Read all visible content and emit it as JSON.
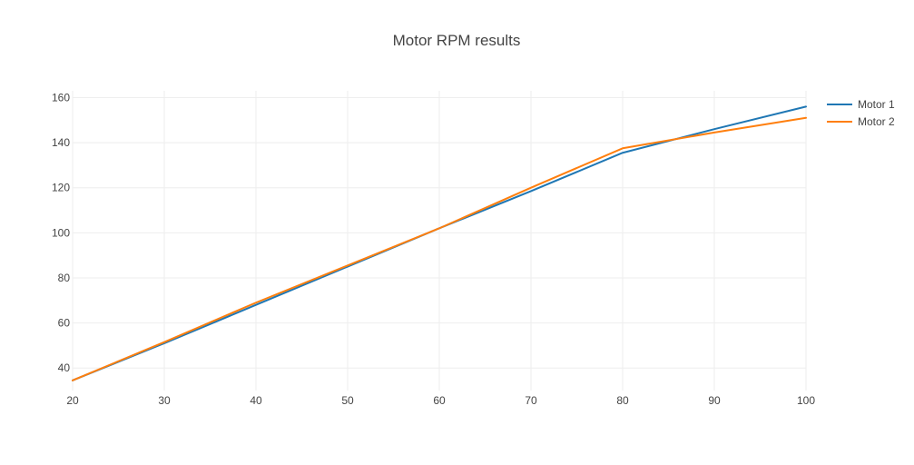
{
  "chart_data": {
    "type": "line",
    "title": "Motor RPM results",
    "xlabel": "",
    "ylabel": "",
    "x": [
      20,
      30,
      40,
      50,
      60,
      70,
      80,
      90,
      100
    ],
    "series": [
      {
        "name": "Motor 1",
        "color": "#1f77b4",
        "values": [
          34.5,
          51,
          68,
          85,
          102,
          118.5,
          135.5,
          146,
          156
        ]
      },
      {
        "name": "Motor 2",
        "color": "#ff7f0e",
        "values": [
          34.5,
          51.5,
          69,
          85.5,
          102,
          120,
          137.5,
          144.5,
          151
        ]
      }
    ],
    "xlim": [
      20,
      100
    ],
    "ylim": [
      30,
      163
    ],
    "x_ticks": [
      "20",
      "30",
      "40",
      "50",
      "60",
      "70",
      "80",
      "90",
      "100"
    ],
    "y_ticks": [
      "40",
      "60",
      "80",
      "100",
      "120",
      "140",
      "160"
    ],
    "grid": true,
    "legend_position": "top-right"
  }
}
